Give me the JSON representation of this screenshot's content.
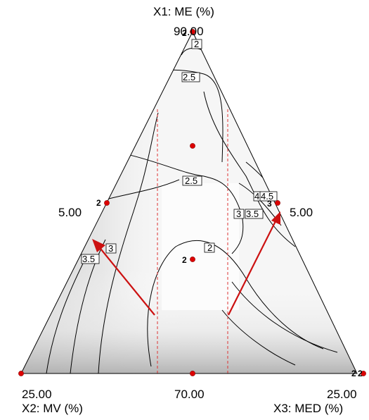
{
  "chart_data": {
    "type": "ternary-contour",
    "axes": {
      "top": {
        "label": "X1: ME (%)",
        "value_label": "90.00",
        "max": 90
      },
      "left": {
        "label": "X2: MV (%)",
        "value_label": "25.00",
        "max": 25
      },
      "right": {
        "label": "X3: MED (%)",
        "value_label": "25.00",
        "max": 25
      },
      "side_labels": {
        "left": "5.00",
        "right": "5.00"
      },
      "bottom_center": "70.00"
    },
    "contour_labels": [
      "2",
      "2.5",
      "2.5",
      "2",
      "3",
      "3.5",
      "3",
      "3.5",
      "4",
      "4.5"
    ],
    "design_points": [
      {
        "ME": 90,
        "MV": 5,
        "MED": 5,
        "replicates": 2
      },
      {
        "ME": 75,
        "MV": 12.5,
        "MED": 12.5
      },
      {
        "ME": 70,
        "MV": 25,
        "MED": 5,
        "replicates": 2
      },
      {
        "ME": 70,
        "MV": 5,
        "MED": 25,
        "replicates": 3
      },
      {
        "ME": 60,
        "MV": 20,
        "MED": 20,
        "replicates": 2
      },
      {
        "ME": 50,
        "MV": 25,
        "MED": 25
      },
      {
        "ME": 70,
        "MV": 25,
        "MED": 5
      },
      {
        "ME": 70,
        "MV": 5,
        "MED": 25,
        "replicates": 2
      }
    ],
    "replicate_labels": [
      "2",
      "2",
      "2",
      "3",
      "2",
      "2"
    ],
    "reference_lines": "dashed vertical red",
    "arrows": [
      "red arrow toward left side",
      "red arrow toward right side"
    ],
    "grid": false,
    "colors": {
      "contour": "#000000",
      "points": "#cc0000",
      "arrows": "#cc1111",
      "dashed": "#dd3333",
      "shade_dark": "#a8a8a8",
      "shade_light": "#ffffff"
    }
  }
}
